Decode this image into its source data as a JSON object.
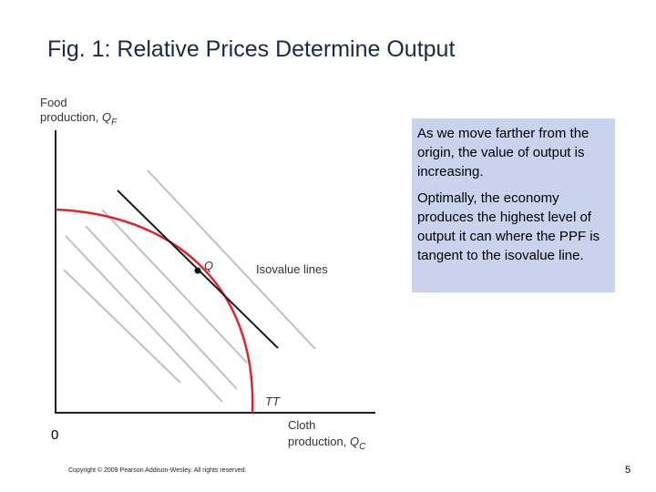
{
  "title": "Fig. 1: Relative Prices Determine Output",
  "axes": {
    "y_label_line1": "Food",
    "y_label_line2": "production, ",
    "y_var": "Q",
    "y_sub": "F",
    "x_label_line1": "Cloth",
    "x_label_line2": "production, ",
    "x_var": "Q",
    "x_sub": "C",
    "origin": "0"
  },
  "labels": {
    "point": "Q",
    "isovalue": "Isovalue lines",
    "ppf": "TT"
  },
  "note": {
    "paragraph1": "As we move farther from the origin, the value of output is increasing.",
    "paragraph2": "Optimally, the economy produces the highest level of output it can where the PPF is tangent to the isovalue line."
  },
  "footer": {
    "copyright": "Copyright © 2009 Pearson Addison-Wesley. All rights reserved.",
    "page_number": "5"
  },
  "colors": {
    "ppf": "#e2232a",
    "isovalue": "#c0c0c0",
    "tangent": "#1a1a1a",
    "note_bg": "#c9d3ee"
  }
}
